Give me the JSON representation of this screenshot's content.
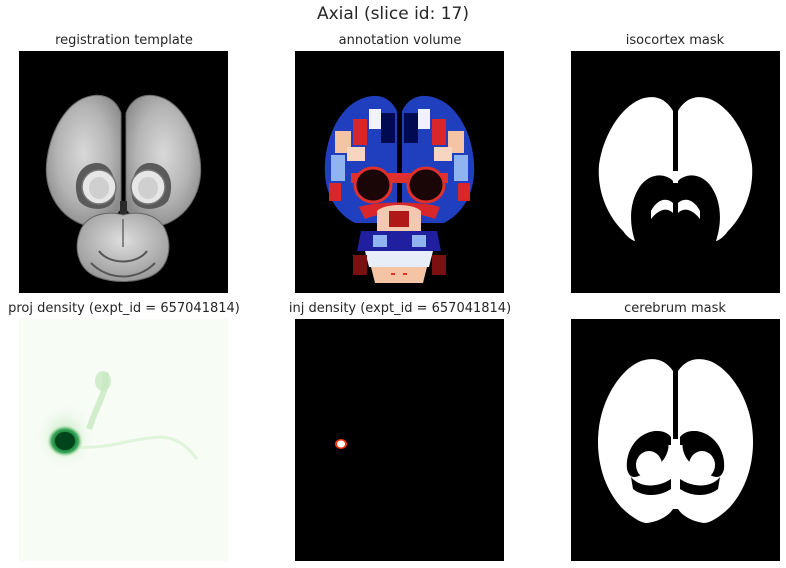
{
  "figure": {
    "title": "Axial (slice id: 17)"
  },
  "panels": [
    {
      "title": "registration template",
      "colormap": "gray"
    },
    {
      "title": "annotation volume",
      "colormap": "categorical"
    },
    {
      "title": "isocortex mask",
      "colormap": "binary"
    },
    {
      "title": "proj density (expt_id = 657041814)",
      "colormap": "Greens"
    },
    {
      "title": "inj density (expt_id = 657041814)",
      "colormap": "hot"
    },
    {
      "title": "cerebrum mask",
      "colormap": "binary"
    }
  ]
}
